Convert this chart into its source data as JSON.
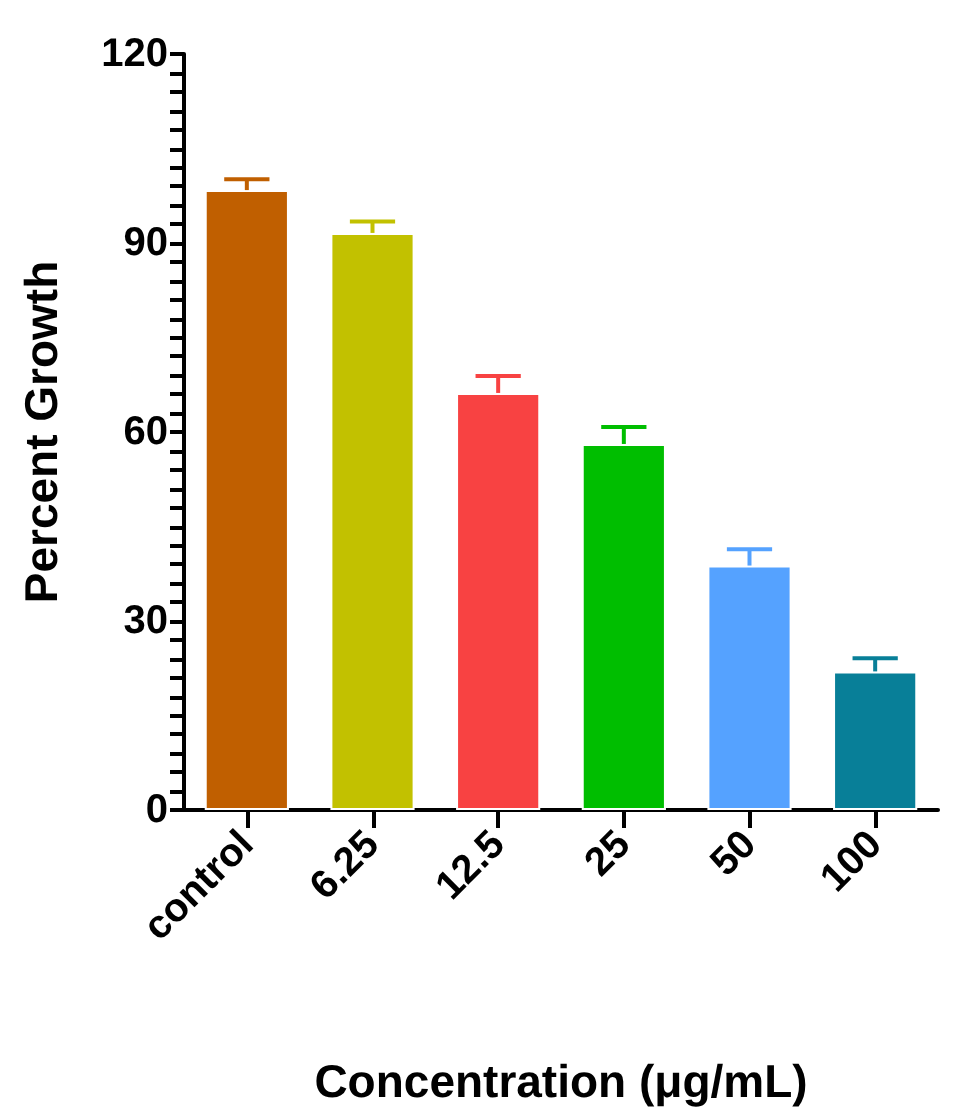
{
  "chart_data": {
    "type": "bar",
    "xlabel": "Concentration (μg/mL)",
    "ylabel": "Percent Growth",
    "categories": [
      "control",
      "6.25",
      "12.5",
      "25",
      "50",
      "100"
    ],
    "values": [
      98.4,
      91.6,
      66.2,
      58.1,
      38.8,
      22.0
    ],
    "colors": [
      "#c05f00",
      "#c2c100",
      "#f84242",
      "#00be00",
      "#55a2ff",
      "#087f98"
    ],
    "errors": [
      [
        98.4,
        100.1
      ],
      [
        91.6,
        93.4
      ],
      [
        66.2,
        68.9
      ],
      [
        58.1,
        60.8
      ],
      [
        38.8,
        41.4
      ],
      [
        22.0,
        24.1
      ]
    ],
    "ylim": [
      0,
      120
    ],
    "yticks": [
      0,
      {
        "value": 3,
        "label": null
      },
      {
        "value": 6,
        "label": null
      },
      {
        "value": 9,
        "label": null
      },
      {
        "value": 12,
        "label": null
      },
      {
        "value": 15,
        "label": null
      },
      {
        "value": 18,
        "label": null
      },
      {
        "value": 21,
        "label": null
      },
      {
        "value": 24,
        "label": null
      },
      {
        "value": 27,
        "label": null
      },
      30,
      {
        "value": 33,
        "label": null
      },
      {
        "value": 36,
        "label": null
      },
      {
        "value": 39,
        "label": null
      },
      {
        "value": 42,
        "label": null
      },
      {
        "value": 45,
        "label": null
      },
      {
        "value": 48,
        "label": null
      },
      {
        "value": 51,
        "label": null
      },
      {
        "value": 54,
        "label": null
      },
      {
        "value": 57,
        "label": null
      },
      60,
      {
        "value": 63,
        "label": null
      },
      {
        "value": 66,
        "label": null
      },
      {
        "value": 69,
        "label": null
      },
      {
        "value": 72,
        "label": null
      },
      {
        "value": 75,
        "label": null
      },
      {
        "value": 78,
        "label": null
      },
      {
        "value": 81,
        "label": null
      },
      {
        "value": 84,
        "label": null
      },
      {
        "value": 87,
        "label": null
      },
      90,
      {
        "value": 93,
        "label": null
      },
      {
        "value": 96,
        "label": null
      },
      {
        "value": 99,
        "label": null
      },
      {
        "value": 102,
        "label": null
      },
      {
        "value": 105,
        "label": null
      },
      {
        "value": 108,
        "label": null
      },
      {
        "value": 111,
        "label": null
      },
      {
        "value": 114,
        "label": null
      },
      {
        "value": 117,
        "label": null
      },
      120
    ],
    "grid": false
  }
}
